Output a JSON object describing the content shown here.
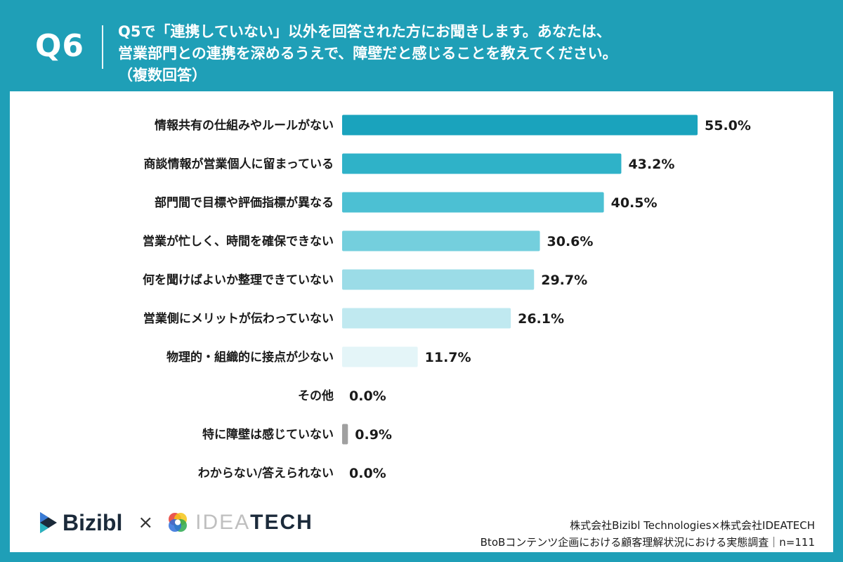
{
  "header": {
    "question_number": "Q6",
    "title_line1": "Q5で「連携していない」以外を回答された方にお聞きします。あなたは、",
    "title_line2": "営業部門との連携を深めるうえで、障壁だと感じることを教えてください。",
    "title_line3": "（複数回答）"
  },
  "colors": {
    "frame": "#1f9fb7",
    "bar_shades": [
      "#1aa3bd",
      "#2fb2c8",
      "#4cc0d3",
      "#74cfdd",
      "#9bdce7",
      "#c0e9f0",
      "#e4f5f8",
      "#b8e4ec",
      "#a0a0a0",
      "#b8e4ec"
    ]
  },
  "chart_data": {
    "type": "bar",
    "orientation": "horizontal",
    "categories": [
      "情報共有の仕組みやルールがない",
      "商談情報が営業個人に留まっている",
      "部門間で目標や評価指標が異なる",
      "営業が忙しく、時間を確保できない",
      "何を聞けばよいか整理できていない",
      "営業側にメリットが伝わっていない",
      "物理的・組織的に接点が少ない",
      "その他",
      "特に障壁は感じていない",
      "わからない/答えられない"
    ],
    "values": [
      55.0,
      43.2,
      40.5,
      30.6,
      29.7,
      26.1,
      11.7,
      0.0,
      0.9,
      0.0
    ],
    "value_labels": [
      "55.0%",
      "43.2%",
      "40.5%",
      "30.6%",
      "29.7%",
      "26.1%",
      "11.7%",
      "0.0%",
      "0.9%",
      "0.0%"
    ],
    "xlim": [
      0,
      55
    ],
    "grid": false
  },
  "footer": {
    "logo_left": "Bizibl",
    "times": "×",
    "logo_right_a": "IDEA",
    "logo_right_b": "TECH",
    "source_line1": "株式会社Bizibl Technologies×株式会社IDEATECH",
    "source_line2": "BtoBコンテンツ企画における顧客理解状況における実態調査｜n=111"
  }
}
